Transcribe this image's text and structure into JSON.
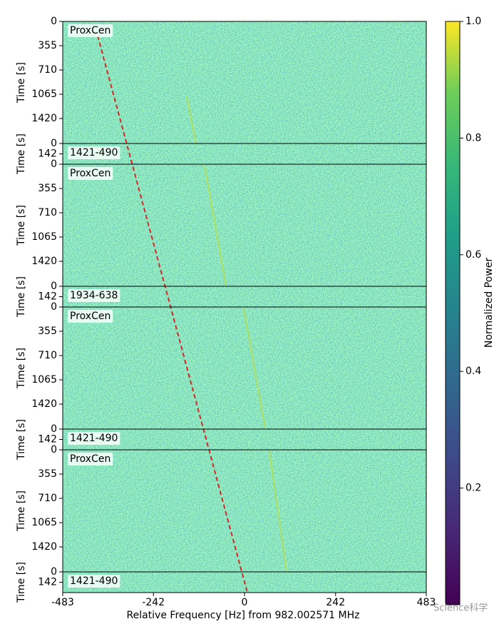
{
  "chart_data": {
    "type": "waterfall",
    "xlabel": "Relative Frequency [Hz] from 982.002571 MHz",
    "xlim": [
      -483,
      483
    ],
    "xticks": [
      -483,
      -242,
      0,
      242,
      483
    ],
    "panels": [
      {
        "label": "ProxCen",
        "ylabel": "Time [s]",
        "ylim": [
          0,
          1785
        ],
        "yticks": [
          0,
          355,
          710,
          1065,
          1420
        ]
      },
      {
        "label": "1421-490",
        "ylabel": "Time [s]",
        "ylim": [
          0,
          284
        ],
        "yticks": [
          0,
          142
        ]
      },
      {
        "label": "ProxCen",
        "ylabel": "Time [s]",
        "ylim": [
          0,
          1785
        ],
        "yticks": [
          0,
          355,
          710,
          1065,
          1420
        ]
      },
      {
        "label": "1934-638",
        "ylabel": "Time [s]",
        "ylim": [
          0,
          284
        ],
        "yticks": [
          0,
          142
        ]
      },
      {
        "label": "ProxCen",
        "ylabel": "Time [s]",
        "ylim": [
          0,
          1785
        ],
        "yticks": [
          0,
          355,
          710,
          1065,
          1420
        ]
      },
      {
        "label": "1421-490",
        "ylabel": "Time [s]",
        "ylim": [
          0,
          284
        ],
        "yticks": [
          0,
          142
        ]
      },
      {
        "label": "ProxCen",
        "ylabel": "Time [s]",
        "ylim": [
          0,
          1785
        ],
        "yticks": [
          0,
          355,
          710,
          1065,
          1420
        ]
      },
      {
        "label": "1421-490",
        "ylabel": "Time [s]",
        "ylim": [
          0,
          284
        ],
        "yticks": [
          0,
          142
        ]
      }
    ],
    "colorbar": {
      "label": "Normalized Power",
      "clim": [
        0,
        1
      ],
      "ticks": [
        0.2,
        0.4,
        0.6,
        0.8,
        {
          "value": 1,
          "label": "1.0"
        }
      ]
    },
    "watermark": "Science科学"
  }
}
